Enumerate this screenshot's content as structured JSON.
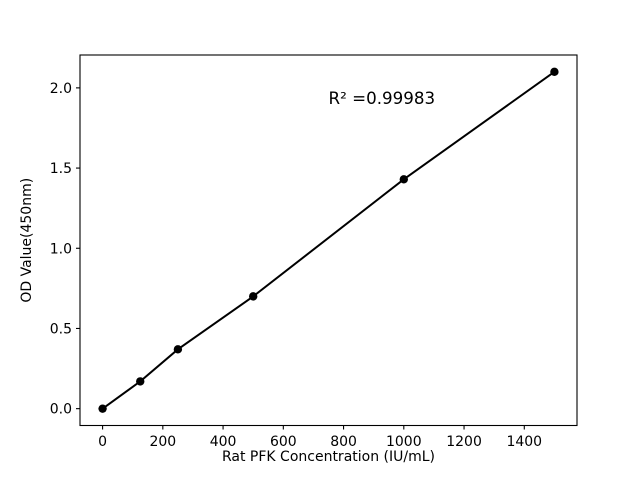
{
  "chart_data": {
    "type": "scatter",
    "title": "",
    "xlabel": "Rat PFK Concentration (IU/mL)",
    "ylabel": "OD Value(450nm)",
    "series": [
      {
        "name": "standard-curve",
        "x": [
          0,
          125,
          250,
          500,
          1000,
          1500
        ],
        "y": [
          0.0,
          0.17,
          0.37,
          0.7,
          1.43,
          2.1
        ],
        "marker": "filled-circle",
        "line": "solid"
      }
    ],
    "annotation": {
      "text": "R² =0.99983",
      "x": 750,
      "y": 1.9
    },
    "xticks": [
      "0",
      "200",
      "400",
      "600",
      "800",
      "1000",
      "1200",
      "1400"
    ],
    "yticks": [
      "0.0",
      "0.5",
      "1.0",
      "1.5",
      "2.0"
    ],
    "xlim": [
      -75,
      1575
    ],
    "ylim": [
      -0.105,
      2.205
    ],
    "grid": false,
    "legend": false,
    "colors": {
      "line": "#000000",
      "marker": "#000000",
      "text": "#000000",
      "spine": "#000000",
      "background": "#ffffff"
    }
  }
}
